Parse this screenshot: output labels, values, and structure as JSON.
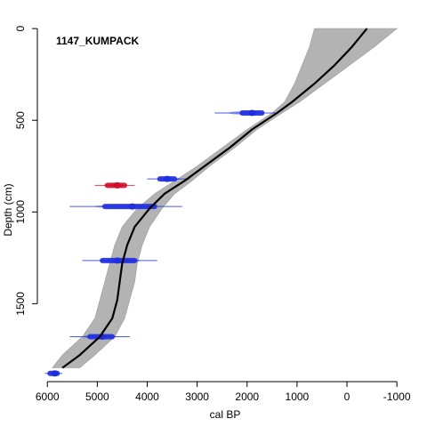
{
  "chart_data": {
    "type": "scatter",
    "title": "1147_KUMPACK",
    "xlabel": "cal BP",
    "ylabel": "Depth (cm)",
    "x_reversed": true,
    "y_reversed": true,
    "xlim": [
      6200,
      -1300
    ],
    "ylim": [
      -20,
      1925
    ],
    "x_ticks": [
      6000,
      5000,
      4000,
      3000,
      2000,
      1000,
      0,
      -1000
    ],
    "y_ticks": [
      0,
      500,
      1000,
      1500
    ],
    "colors": {
      "envelope": "#b3b3b3",
      "median": "#000000",
      "date_accepted": "#1f2fe0",
      "date_rejected": "#d0102a"
    },
    "age_model": {
      "depth": [
        0,
        100,
        200,
        300,
        400,
        460,
        550,
        650,
        750,
        830,
        900,
        980,
        1080,
        1180,
        1280,
        1380,
        1480,
        1580,
        1680,
        1780,
        1850
      ],
      "median": [
        -400,
        -100,
        250,
        650,
        1100,
        1400,
        1900,
        2350,
        2850,
        3250,
        3650,
        3950,
        4250,
        4400,
        4500,
        4550,
        4600,
        4700,
        4950,
        5350,
        5700
      ],
      "min": [
        -1000,
        -550,
        -50,
        450,
        950,
        1300,
        1800,
        2250,
        2750,
        3100,
        3450,
        3700,
        3950,
        4100,
        4200,
        4250,
        4350,
        4450,
        4650,
        5050,
        5350
      ],
      "max": [
        650,
        750,
        900,
        1050,
        1250,
        1500,
        2000,
        2500,
        3000,
        3450,
        3850,
        4200,
        4500,
        4650,
        4750,
        4850,
        4950,
        5050,
        5300,
        5700,
        5900
      ]
    },
    "dates": [
      {
        "depth": 460,
        "age": 1900,
        "err_min": 1400,
        "err_max": 2650,
        "core_min": 1650,
        "core_max": 2150,
        "status": "accepted"
      },
      {
        "depth": 820,
        "age": 3600,
        "err_min": 3150,
        "err_max": 4000,
        "core_min": 3400,
        "core_max": 3800,
        "status": "accepted"
      },
      {
        "depth": 855,
        "age": 4600,
        "err_min": 4250,
        "err_max": 5050,
        "core_min": 4400,
        "core_max": 4850,
        "status": "rejected"
      },
      {
        "depth": 970,
        "age": 4300,
        "err_min": 3300,
        "err_max": 5550,
        "core_min": 3800,
        "core_max": 4900,
        "status": "accepted"
      },
      {
        "depth": 1265,
        "age": 4600,
        "err_min": 3800,
        "err_max": 5300,
        "core_min": 4200,
        "core_max": 4950,
        "status": "accepted"
      },
      {
        "depth": 1680,
        "age": 4900,
        "err_min": 4350,
        "err_max": 5550,
        "core_min": 4650,
        "core_max": 5200,
        "status": "accepted"
      },
      {
        "depth": 1880,
        "age": 5850,
        "err_min": 5700,
        "err_max": 6050,
        "core_min": 5750,
        "core_max": 6000,
        "status": "accepted"
      }
    ]
  }
}
